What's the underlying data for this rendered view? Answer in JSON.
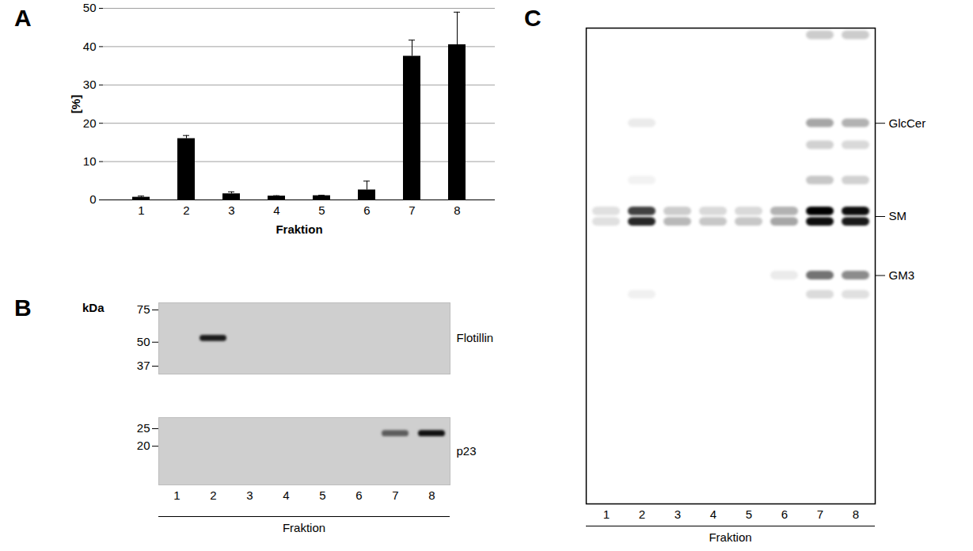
{
  "chart_data": {
    "type": "bar",
    "panel_label": "A",
    "categories": [
      "1",
      "2",
      "3",
      "4",
      "5",
      "6",
      "7",
      "8"
    ],
    "values": [
      0.7,
      16,
      1.6,
      1.0,
      1.1,
      2.6,
      37.5,
      40.5
    ],
    "errors": [
      0.3,
      0.8,
      0.5,
      0.1,
      0.1,
      2.3,
      4.2,
      8.5
    ],
    "xlabel": "Fraktion",
    "ylabel": "[%]",
    "color": "#000000",
    "ylim": [
      0,
      50
    ],
    "yticks": [
      0,
      10,
      20,
      30,
      40,
      50
    ],
    "grid": true
  },
  "blots": {
    "panel_label": "B",
    "unit": "kDa",
    "xlabel": "Fraktion",
    "lanes": [
      "1",
      "2",
      "3",
      "4",
      "5",
      "6",
      "7",
      "8"
    ],
    "strips": [
      {
        "label": "Flotillin",
        "log": "y",
        "ylim": [
          33.5,
          82
        ],
        "yticks": [
          75,
          50,
          37
        ],
        "tick_labels": "y",
        "bands": [
          {
            "lane": "2",
            "kDa": 52.5,
            "intensity": 0.95
          }
        ]
      },
      {
        "label": "p23",
        "log": "y",
        "ylim": [
          12.2,
          28.8
        ],
        "yticks": [
          25,
          20
        ],
        "tick_labels": true,
        "bands": [
          {
            "lane": "7",
            "kDa": 23.5,
            "intensity": 0.6
          },
          {
            "lane": "8",
            "kDa": 23.5,
            "intensity": 1.0
          }
        ]
      }
    ]
  },
  "tlc": {
    "panel_label": "C",
    "xlabel": "Fraktion",
    "lanes": [
      "1",
      "2",
      "3",
      "4",
      "5",
      "6",
      "7",
      "8"
    ],
    "ylim": [
      0,
      1
    ],
    "tick_labels": "x",
    "bands": [
      {
        "migration": 0.985,
        "intensity": [
          0,
          0,
          0,
          0,
          0,
          0,
          0.2,
          0.2
        ]
      },
      {
        "migration": 0.8,
        "intensity": [
          0,
          0.08,
          0,
          0,
          0,
          0,
          0.35,
          0.3
        ]
      },
      {
        "migration": 0.754,
        "intensity": [
          0,
          0,
          0,
          0,
          0,
          0,
          0.18,
          0.15
        ]
      },
      {
        "migration": 0.68,
        "intensity": [
          0,
          0.05,
          0,
          0,
          0,
          0,
          0.22,
          0.18
        ]
      },
      {
        "migration": 0.615,
        "intensity": [
          0.12,
          0.75,
          0.2,
          0.15,
          0.15,
          0.3,
          1.0,
          0.95
        ]
      },
      {
        "migration": 0.593,
        "intensity": [
          0.12,
          0.85,
          0.28,
          0.22,
          0.22,
          0.35,
          0.95,
          0.9
        ]
      },
      {
        "migration": 0.48,
        "intensity": [
          0,
          0,
          0,
          0,
          0,
          0.08,
          0.55,
          0.45
        ]
      },
      {
        "migration": 0.44,
        "intensity": [
          0,
          0.06,
          0,
          0,
          0,
          0,
          0.14,
          0.12
        ]
      }
    ],
    "labels": [
      {
        "text": "GlcCer",
        "migration": [
          0.8
        ]
      },
      {
        "text": "SM",
        "migration": [
          0.593,
          0.615
        ]
      },
      {
        "text": "GM3",
        "migration": [
          0.48
        ]
      }
    ]
  }
}
